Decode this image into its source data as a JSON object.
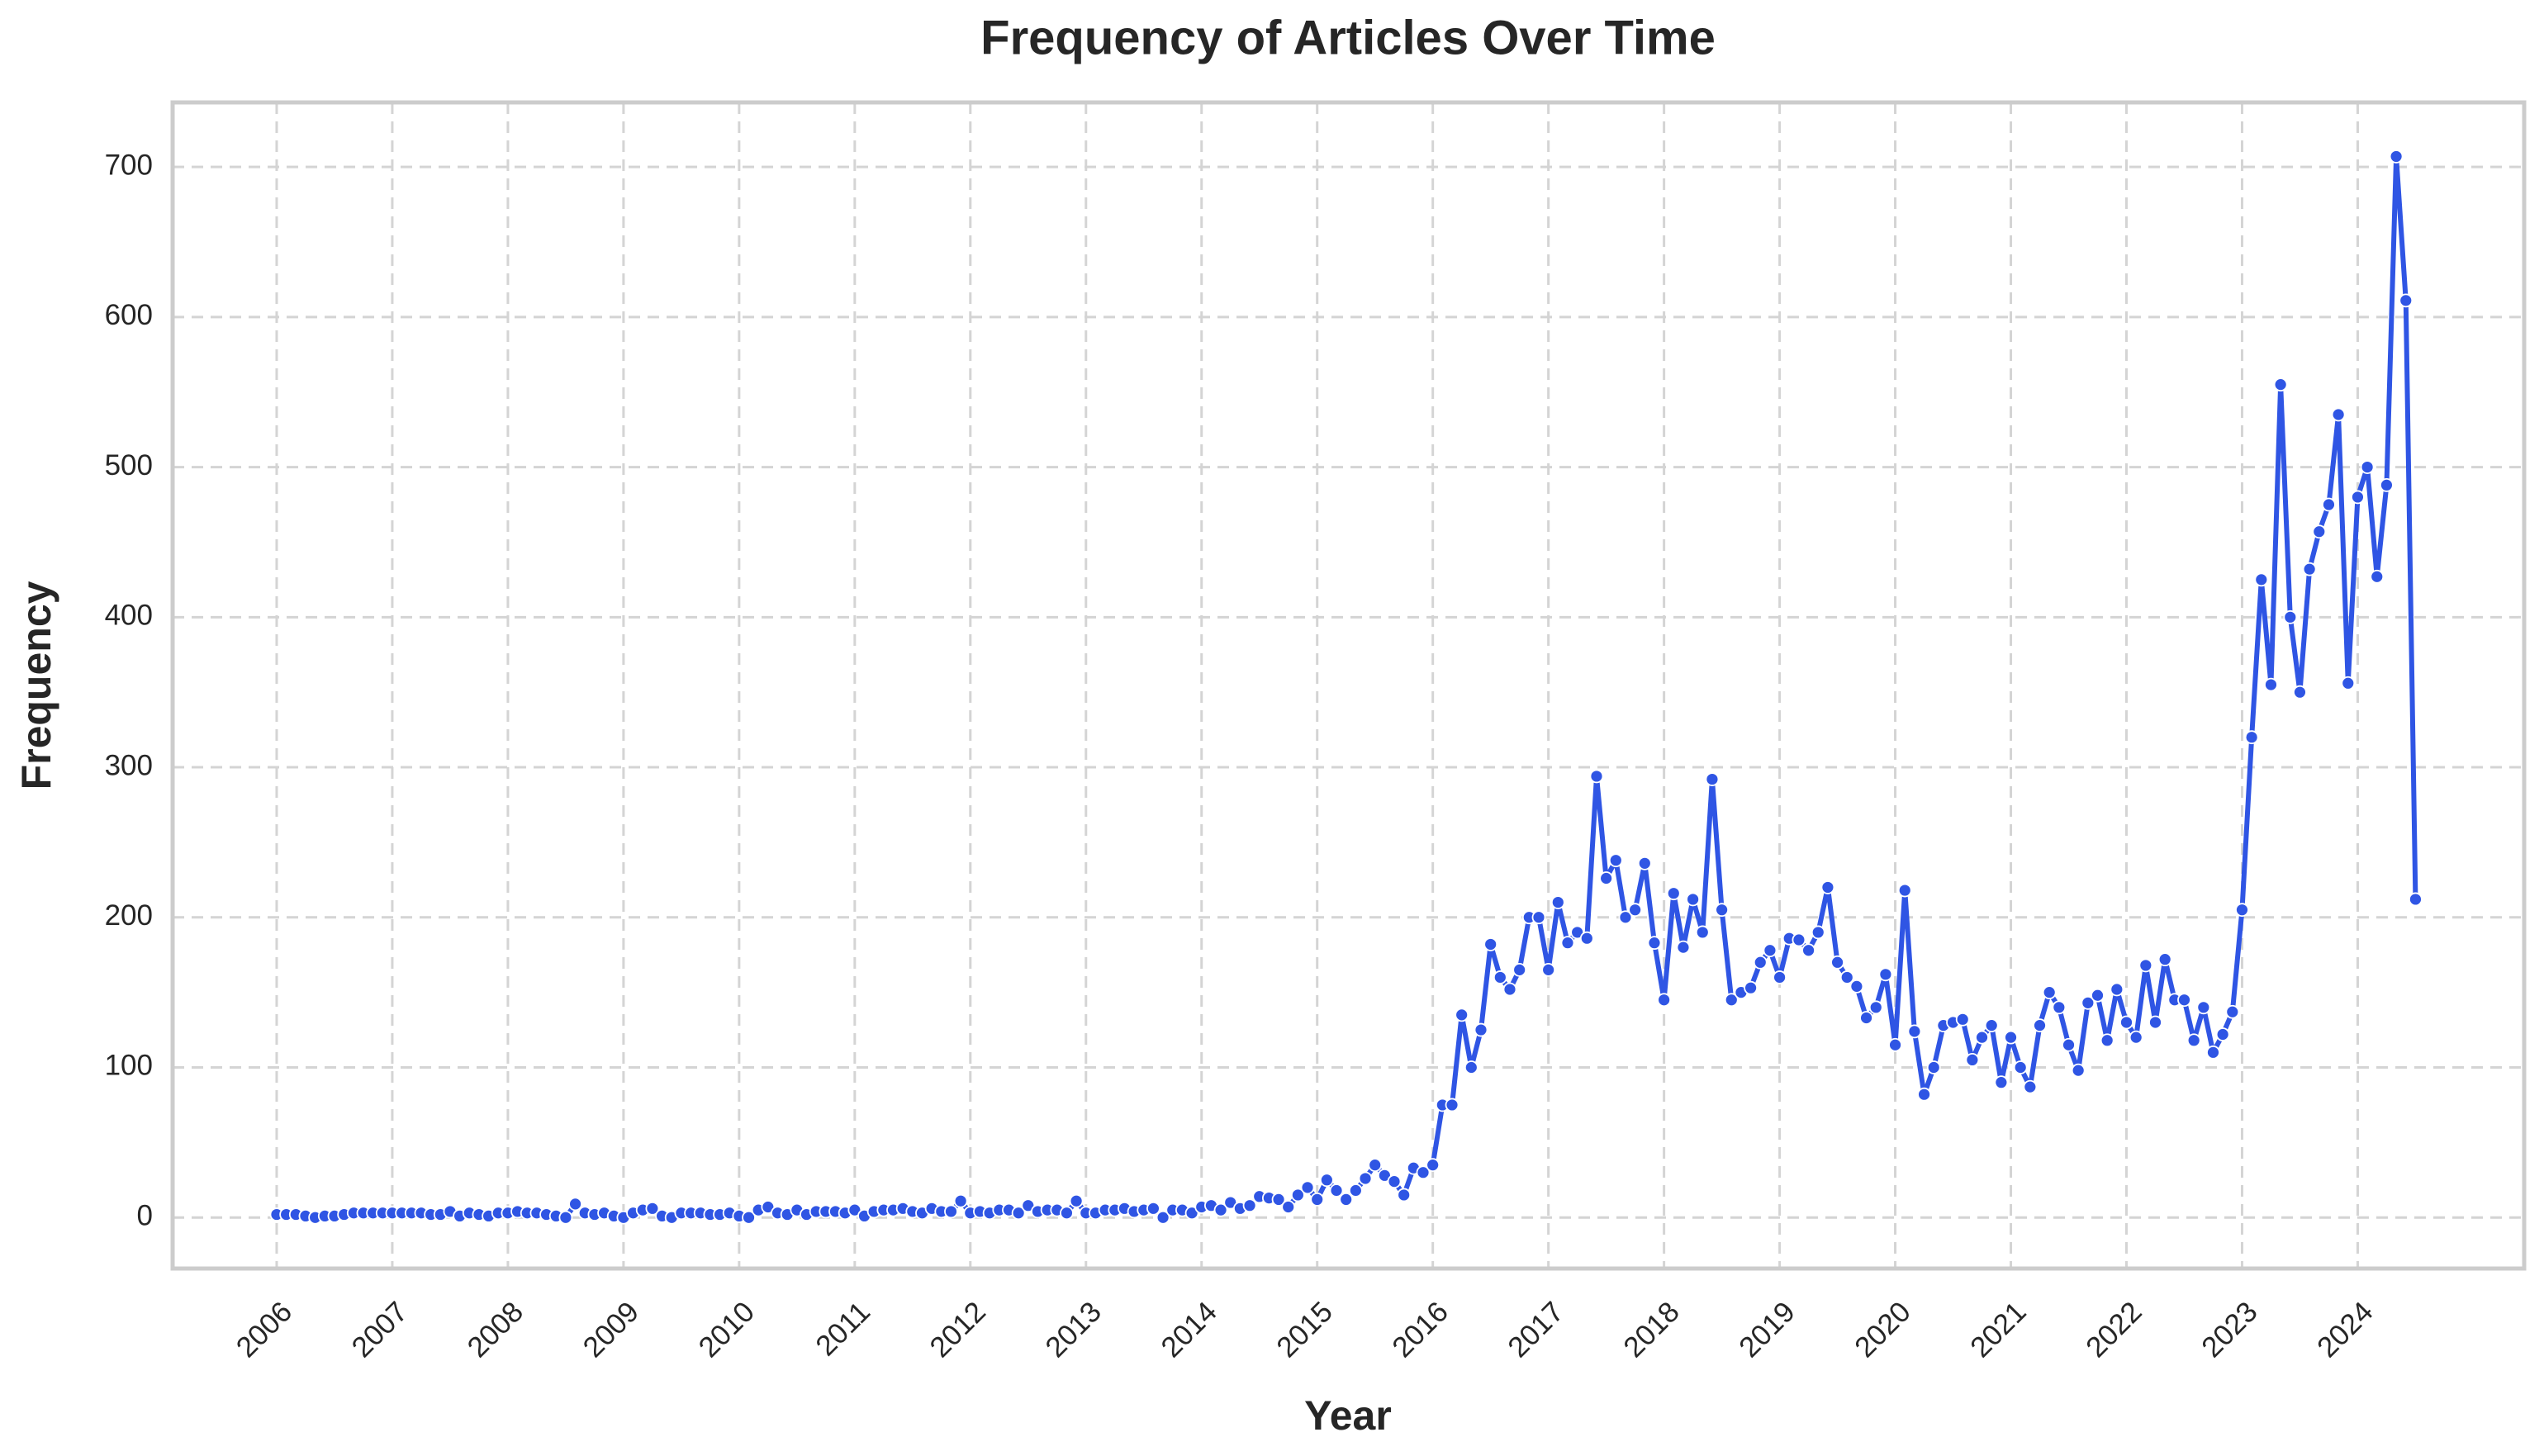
{
  "chart_data": {
    "type": "line",
    "title": "Frequency of Articles Over Time",
    "xlabel": "Year",
    "ylabel": "Frequency",
    "color": "#2f55e4",
    "grid": true,
    "xlim": [
      2005.1,
      2025.44
    ],
    "ylim": [
      -34,
      743
    ],
    "xticks": [
      2006,
      2007,
      2008,
      2009,
      2010,
      2011,
      2012,
      2013,
      2014,
      2015,
      2016,
      2017,
      2018,
      2019,
      2020,
      2021,
      2022,
      2023,
      2024
    ],
    "yticks": [
      0,
      100,
      200,
      300,
      400,
      500,
      600,
      700
    ],
    "x": [
      "2006-01",
      "2006-02",
      "2006-03",
      "2006-04",
      "2006-05",
      "2006-06",
      "2006-07",
      "2006-08",
      "2006-09",
      "2006-10",
      "2006-11",
      "2006-12",
      "2007-01",
      "2007-02",
      "2007-03",
      "2007-04",
      "2007-05",
      "2007-06",
      "2007-07",
      "2007-08",
      "2007-09",
      "2007-10",
      "2007-11",
      "2007-12",
      "2008-01",
      "2008-02",
      "2008-03",
      "2008-04",
      "2008-05",
      "2008-06",
      "2008-07",
      "2008-08",
      "2008-09",
      "2008-10",
      "2008-11",
      "2008-12",
      "2009-01",
      "2009-02",
      "2009-03",
      "2009-04",
      "2009-05",
      "2009-06",
      "2009-07",
      "2009-08",
      "2009-09",
      "2009-10",
      "2009-11",
      "2009-12",
      "2010-01",
      "2010-02",
      "2010-03",
      "2010-04",
      "2010-05",
      "2010-06",
      "2010-07",
      "2010-08",
      "2010-09",
      "2010-10",
      "2010-11",
      "2010-12",
      "2011-01",
      "2011-02",
      "2011-03",
      "2011-04",
      "2011-05",
      "2011-06",
      "2011-07",
      "2011-08",
      "2011-09",
      "2011-10",
      "2011-11",
      "2011-12",
      "2012-01",
      "2012-02",
      "2012-03",
      "2012-04",
      "2012-05",
      "2012-06",
      "2012-07",
      "2012-08",
      "2012-09",
      "2012-10",
      "2012-11",
      "2012-12",
      "2013-01",
      "2013-02",
      "2013-03",
      "2013-04",
      "2013-05",
      "2013-06",
      "2013-07",
      "2013-08",
      "2013-09",
      "2013-10",
      "2013-11",
      "2013-12",
      "2014-01",
      "2014-02",
      "2014-03",
      "2014-04",
      "2014-05",
      "2014-06",
      "2014-07",
      "2014-08",
      "2014-09",
      "2014-10",
      "2014-11",
      "2014-12",
      "2015-01",
      "2015-02",
      "2015-03",
      "2015-04",
      "2015-05",
      "2015-06",
      "2015-07",
      "2015-08",
      "2015-09",
      "2015-10",
      "2015-11",
      "2015-12",
      "2016-01",
      "2016-02",
      "2016-03",
      "2016-04",
      "2016-05",
      "2016-06",
      "2016-07",
      "2016-08",
      "2016-09",
      "2016-10",
      "2016-11",
      "2016-12",
      "2017-01",
      "2017-02",
      "2017-03",
      "2017-04",
      "2017-05",
      "2017-06",
      "2017-07",
      "2017-08",
      "2017-09",
      "2017-10",
      "2017-11",
      "2017-12",
      "2018-01",
      "2018-02",
      "2018-03",
      "2018-04",
      "2018-05",
      "2018-06",
      "2018-07",
      "2018-08",
      "2018-09",
      "2018-10",
      "2018-11",
      "2018-12",
      "2019-01",
      "2019-02",
      "2019-03",
      "2019-04",
      "2019-05",
      "2019-06",
      "2019-07",
      "2019-08",
      "2019-09",
      "2019-10",
      "2019-11",
      "2019-12",
      "2020-01",
      "2020-02",
      "2020-03",
      "2020-04",
      "2020-05",
      "2020-06",
      "2020-07",
      "2020-08",
      "2020-09",
      "2020-10",
      "2020-11",
      "2020-12",
      "2021-01",
      "2021-02",
      "2021-03",
      "2021-04",
      "2021-05",
      "2021-06",
      "2021-07",
      "2021-08",
      "2021-09",
      "2021-10",
      "2021-11",
      "2021-12",
      "2022-01",
      "2022-02",
      "2022-03",
      "2022-04",
      "2022-05",
      "2022-06",
      "2022-07",
      "2022-08",
      "2022-09",
      "2022-10",
      "2022-11",
      "2022-12",
      "2023-01",
      "2023-02",
      "2023-03",
      "2023-04",
      "2023-05",
      "2023-06",
      "2023-07",
      "2023-08",
      "2023-09",
      "2023-10",
      "2023-11",
      "2023-12",
      "2024-01",
      "2024-02",
      "2024-03",
      "2024-04",
      "2024-05",
      "2024-06",
      "2024-07"
    ],
    "values": [
      2,
      2,
      2,
      1,
      0,
      1,
      1,
      2,
      3,
      3,
      3,
      3,
      3,
      3,
      3,
      3,
      2,
      2,
      4,
      1,
      3,
      2,
      1,
      3,
      3,
      4,
      3,
      3,
      2,
      1,
      0,
      9,
      3,
      2,
      3,
      1,
      0,
      3,
      5,
      6,
      1,
      0,
      3,
      3,
      3,
      2,
      2,
      3,
      1,
      0,
      5,
      7,
      3,
      2,
      5,
      2,
      4,
      4,
      4,
      3,
      5,
      1,
      4,
      5,
      5,
      6,
      4,
      3,
      6,
      4,
      4,
      11,
      3,
      4,
      3,
      5,
      5,
      3,
      8,
      4,
      5,
      5,
      3,
      11,
      3,
      3,
      5,
      5,
      6,
      4,
      5,
      6,
      0,
      5,
      5,
      3,
      7,
      8,
      5,
      10,
      6,
      8,
      14,
      13,
      12,
      7,
      15,
      20,
      12,
      25,
      18,
      12,
      18,
      26,
      35,
      28,
      24,
      15,
      33,
      30,
      35,
      75,
      75,
      135,
      100,
      125,
      182,
      160,
      152,
      165,
      200,
      200,
      165,
      210,
      183,
      190,
      186,
      294,
      226,
      238,
      200,
      205,
      236,
      183,
      145,
      216,
      180,
      212,
      190,
      292,
      205,
      145,
      150,
      153,
      170,
      178,
      160,
      186,
      185,
      178,
      190,
      220,
      170,
      160,
      154,
      133,
      140,
      162,
      115,
      218,
      124,
      82,
      100,
      128,
      130,
      132,
      105,
      120,
      128,
      90,
      120,
      100,
      87,
      128,
      150,
      140,
      115,
      98,
      143,
      148,
      118,
      152,
      130,
      120,
      168,
      130,
      172,
      145,
      145,
      118,
      140,
      110,
      122,
      137,
      205,
      320,
      425,
      355,
      555,
      400,
      350,
      432,
      457,
      475,
      535,
      356,
      480,
      500,
      427,
      488,
      707,
      611,
      212
    ]
  }
}
